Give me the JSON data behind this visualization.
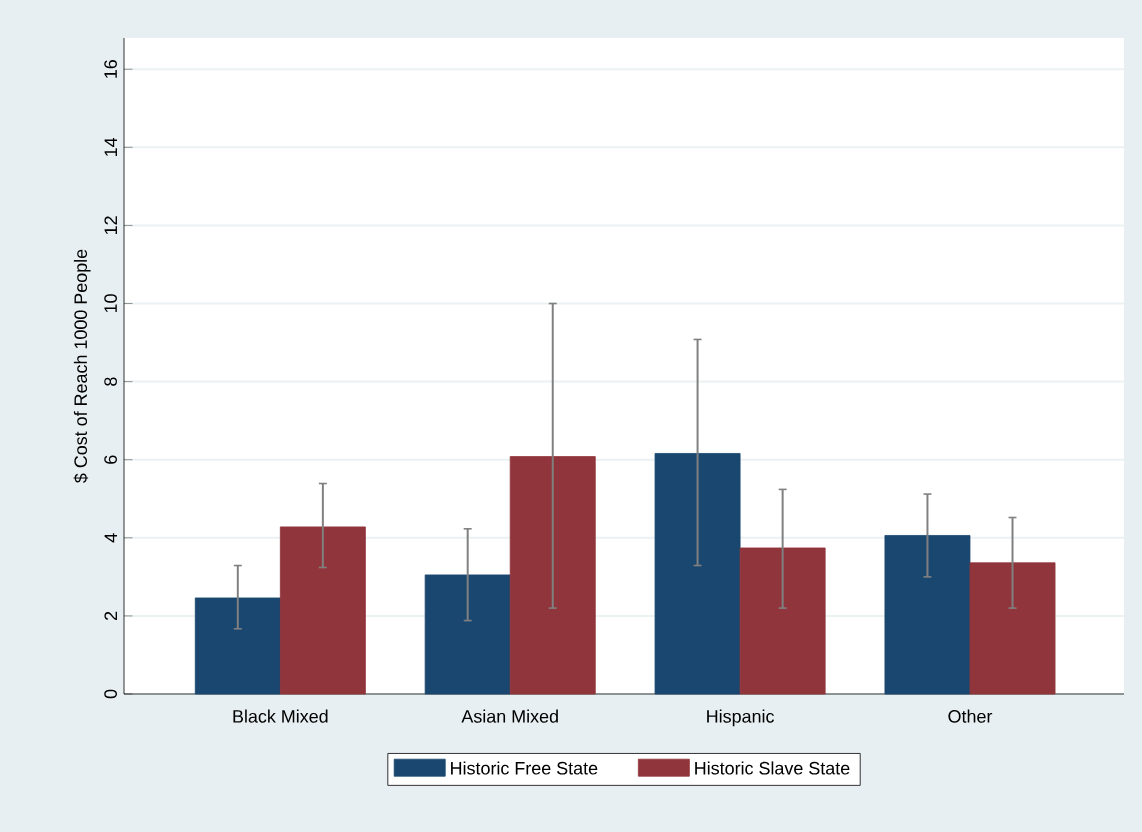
{
  "chart_data": {
    "type": "bar",
    "ylabel": "$ Cost of Reach 1000 People",
    "categories": [
      "Black Mixed",
      "Asian Mixed",
      "Hispanic",
      "Other"
    ],
    "series": [
      {
        "name": "Historic Free State",
        "color": "#1a476f",
        "values": [
          2.46,
          3.05,
          6.16,
          4.06
        ],
        "errors": [
          [
            1.67,
            3.29
          ],
          [
            1.88,
            4.23
          ],
          [
            3.29,
            9.08
          ],
          [
            3.0,
            5.12
          ]
        ]
      },
      {
        "name": "Historic Slave State",
        "color": "#90353b",
        "values": [
          4.28,
          6.08,
          3.74,
          3.36
        ],
        "errors": [
          [
            3.24,
            5.39
          ],
          [
            2.2,
            10.0
          ],
          [
            2.2,
            5.24
          ],
          [
            2.2,
            4.52
          ]
        ]
      }
    ],
    "ylim": [
      0,
      16.8
    ],
    "yticks": [
      0,
      2,
      4,
      6,
      8,
      10,
      12,
      14,
      16
    ],
    "grid": "y",
    "legend": "bottom"
  }
}
